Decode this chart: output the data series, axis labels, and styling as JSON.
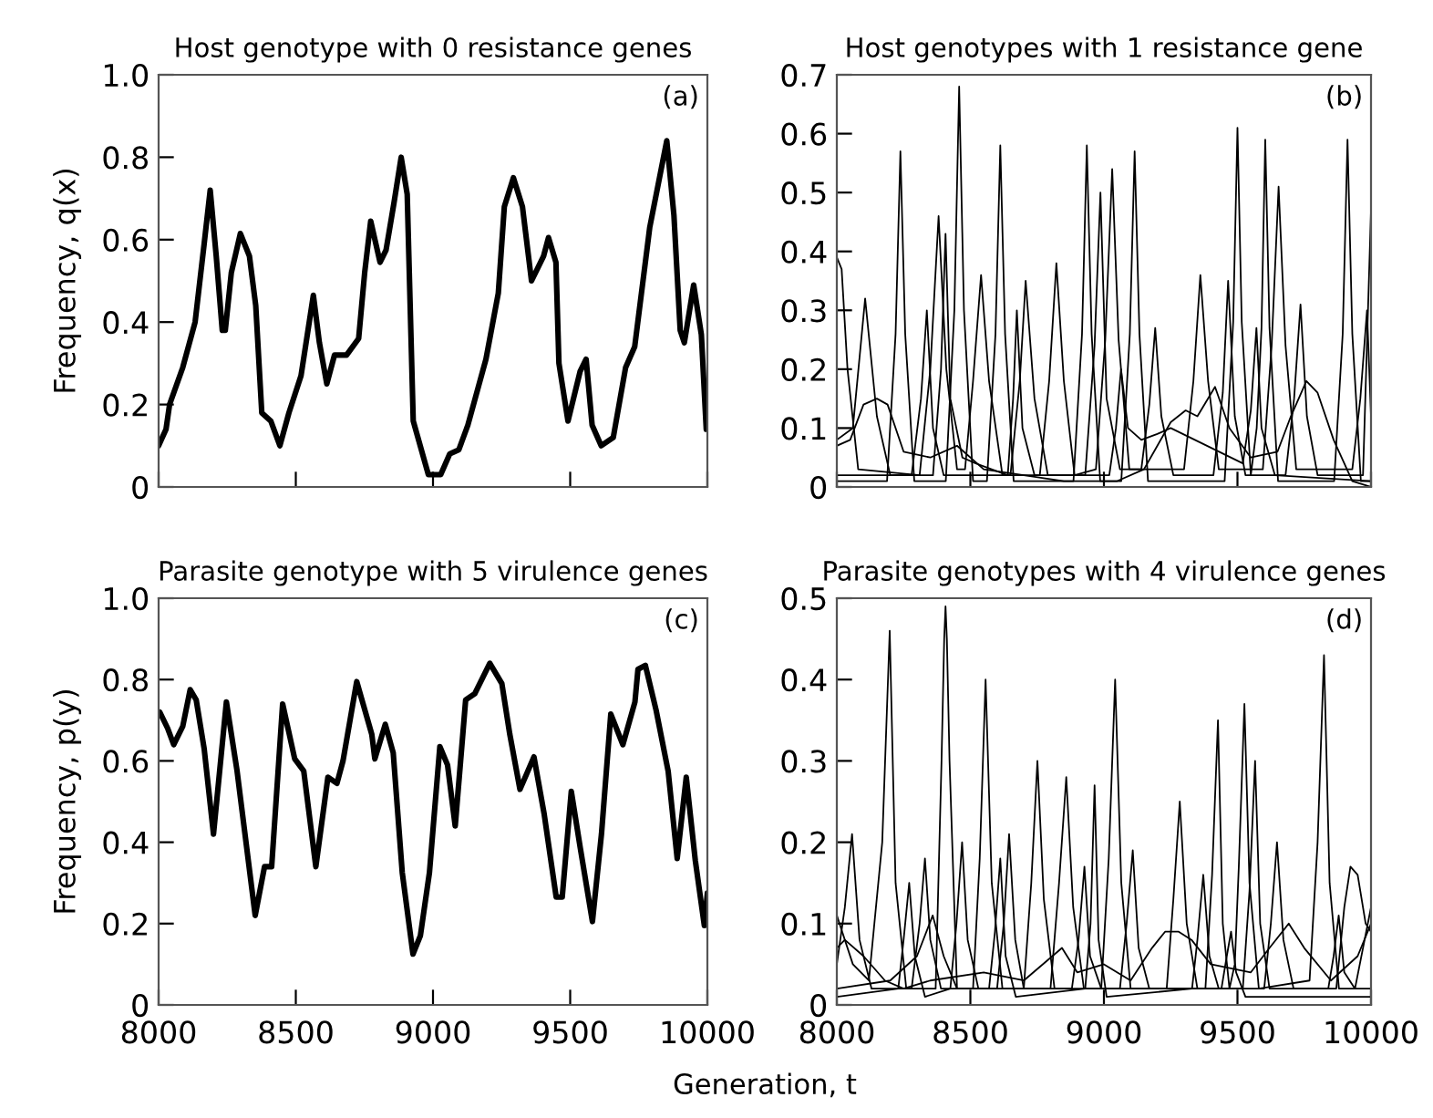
{
  "chart_data": [
    {
      "type": "line",
      "title": "Host genotype with 0 resistance genes",
      "ylabel": "Frequency, q(x)",
      "annotations": [
        "(a)"
      ],
      "xlim": [
        8000,
        10000
      ],
      "xticks": [
        {
          "value": 8000,
          "label": null
        },
        {
          "value": 8500,
          "label": null
        },
        {
          "value": 9000,
          "label": null
        },
        {
          "value": 9500,
          "label": null
        },
        {
          "value": 10000,
          "label": null
        }
      ],
      "ylim": [
        0,
        1.0
      ],
      "yticks": [
        {
          "value": 0,
          "label": "0"
        },
        {
          "value": 0.2,
          "label": "0.2"
        },
        {
          "value": 0.4,
          "label": "0.4"
        },
        {
          "value": 0.6,
          "label": "0.6"
        },
        {
          "value": 0.8,
          "label": "0.8"
        },
        {
          "value": 1.0,
          "label": "1.0"
        }
      ],
      "tick_labels": "y",
      "series": [
        {
          "color": "#000000",
          "x": [
            8000,
            8027,
            8040,
            8088,
            8133,
            8166,
            8188,
            8210,
            8232,
            8243,
            8265,
            8298,
            8331,
            8354,
            8376,
            8409,
            8442,
            8475,
            8519,
            8564,
            8586,
            8613,
            8641,
            8685,
            8729,
            8751,
            8773,
            8807,
            8829,
            8858,
            8884,
            8906,
            8928,
            8983,
            9028,
            9061,
            9094,
            9127,
            9193,
            9238,
            9260,
            9293,
            9326,
            9359,
            9403,
            9421,
            9448,
            9459,
            9492,
            9536,
            9558,
            9580,
            9613,
            9657,
            9702,
            9735,
            9790,
            9852,
            9878,
            9901,
            9916,
            9950,
            9978,
            9996
          ],
          "values": [
            0.1,
            0.14,
            0.2,
            0.29,
            0.4,
            0.59,
            0.72,
            0.56,
            0.38,
            0.38,
            0.52,
            0.615,
            0.56,
            0.44,
            0.18,
            0.16,
            0.1,
            0.18,
            0.27,
            0.465,
            0.35,
            0.25,
            0.32,
            0.32,
            0.36,
            0.52,
            0.645,
            0.545,
            0.575,
            0.69,
            0.8,
            0.71,
            0.16,
            0.03,
            0.03,
            0.08,
            0.09,
            0.15,
            0.31,
            0.47,
            0.68,
            0.75,
            0.68,
            0.5,
            0.56,
            0.605,
            0.545,
            0.3,
            0.16,
            0.28,
            0.31,
            0.15,
            0.1,
            0.12,
            0.29,
            0.34,
            0.63,
            0.84,
            0.66,
            0.38,
            0.35,
            0.49,
            0.37,
            0.14
          ]
        }
      ]
    },
    {
      "type": "line",
      "title": "Host genotypes with 1 resistance gene",
      "annotations": [
        "(b)"
      ],
      "xlim": [
        8000,
        10000
      ],
      "xticks": [
        {
          "value": 8000,
          "label": null
        },
        {
          "value": 8500,
          "label": null
        },
        {
          "value": 9000,
          "label": null
        },
        {
          "value": 9500,
          "label": null
        },
        {
          "value": 10000,
          "label": null
        }
      ],
      "ylim": [
        0,
        0.7
      ],
      "yticks": [
        {
          "value": 0,
          "label": "0"
        },
        {
          "value": 0.1,
          "label": "0.1"
        },
        {
          "value": 0.2,
          "label": "0.2"
        },
        {
          "value": 0.3,
          "label": "0.3"
        },
        {
          "value": 0.4,
          "label": "0.4"
        },
        {
          "value": 0.5,
          "label": "0.5"
        },
        {
          "value": 0.6,
          "label": "0.6"
        },
        {
          "value": 0.7,
          "label": "0.7"
        }
      ],
      "tick_labels": "y",
      "series": [
        {
          "color": "#000000",
          "x": [
            8000,
            8188,
            8220,
            8238,
            8256,
            8290,
            8408,
            8440,
            8458,
            8476,
            8510,
            8562,
            8594,
            8612,
            8630,
            8662,
            8886,
            8918,
            8936,
            8954,
            8986,
            9065,
            9097,
            9115,
            9133,
            9165,
            9452,
            9484,
            9500,
            9516,
            9550,
            9572,
            9590,
            9604,
            9620,
            9652,
            9862,
            9894,
            9912,
            9930,
            9962,
            10000
          ],
          "values": [
            0.01,
            0.01,
            0.26,
            0.57,
            0.26,
            0.01,
            0.01,
            0.3,
            0.68,
            0.3,
            0.01,
            0.01,
            0.26,
            0.58,
            0.26,
            0.01,
            0.01,
            0.26,
            0.58,
            0.26,
            0.01,
            0.01,
            0.26,
            0.57,
            0.26,
            0.01,
            0.01,
            0.28,
            0.61,
            0.28,
            0.02,
            0.1,
            0.27,
            0.59,
            0.27,
            0.01,
            0.01,
            0.26,
            0.59,
            0.26,
            0.01,
            0.01
          ]
        },
        {
          "color": "#000000",
          "x": [
            8000,
            8018,
            8040,
            8080,
            8310,
            8350,
            8381,
            8410,
            8450,
            8480,
            8510,
            8540,
            8570,
            8620,
            8760,
            8795,
            8822,
            8850,
            8890,
            8970,
            9005,
            9031,
            9055,
            9095,
            9300,
            9335,
            9361,
            9390,
            9430,
            9595,
            9628,
            9654,
            9680,
            9720,
            9930,
            9960,
            9985,
            10000
          ],
          "values": [
            0.39,
            0.37,
            0.2,
            0.03,
            0.02,
            0.2,
            0.46,
            0.2,
            0.03,
            0.03,
            0.18,
            0.36,
            0.18,
            0.02,
            0.02,
            0.18,
            0.38,
            0.18,
            0.02,
            0.03,
            0.25,
            0.54,
            0.25,
            0.03,
            0.03,
            0.18,
            0.36,
            0.18,
            0.03,
            0.03,
            0.24,
            0.51,
            0.24,
            0.03,
            0.03,
            0.15,
            0.3,
            0.12
          ]
        },
        {
          "color": "#000000",
          "x": [
            8000,
            8060,
            8106,
            8150,
            8200,
            8280,
            8315,
            8337,
            8360,
            8400,
            8650,
            8685,
            8707,
            8740,
            8790,
            8930,
            8965,
            8987,
            9010,
            9060,
            9140,
            9170,
            9192,
            9215,
            9260,
            9410,
            9445,
            9465,
            9490,
            9530,
            9680,
            9712,
            9736,
            9760,
            9800,
            9970,
            10000
          ],
          "values": [
            0.08,
            0.1,
            0.32,
            0.12,
            0.02,
            0.02,
            0.15,
            0.3,
            0.1,
            0.02,
            0.02,
            0.18,
            0.35,
            0.15,
            0.02,
            0.02,
            0.24,
            0.5,
            0.15,
            0.03,
            0.03,
            0.14,
            0.27,
            0.12,
            0.02,
            0.02,
            0.16,
            0.35,
            0.12,
            0.02,
            0.02,
            0.15,
            0.31,
            0.12,
            0.02,
            0.02,
            0.47
          ]
        },
        {
          "color": "#000000",
          "x": [
            8000,
            8360,
            8390,
            8407,
            8425,
            8470,
            8520,
            8640,
            8660,
            8674,
            8695,
            8740,
            9020,
            9045,
            9064,
            9090,
            9140,
            9200,
            9250,
            9520,
            9550,
            9571,
            9590,
            9640,
            10000
          ],
          "values": [
            0.02,
            0.02,
            0.2,
            0.43,
            0.15,
            0.05,
            0.04,
            0.02,
            0.15,
            0.3,
            0.1,
            0.02,
            0.02,
            0.1,
            0.2,
            0.1,
            0.08,
            0.09,
            0.1,
            0.04,
            0.13,
            0.27,
            0.1,
            0.02,
            0.01
          ]
        },
        {
          "color": "#000000",
          "x": [
            8000,
            8050,
            8100,
            8150,
            8190,
            8250,
            8350,
            8450,
            8550,
            8700,
            8850,
            9050,
            9150,
            9250,
            9306,
            9350,
            9416,
            9470,
            9550,
            9650,
            9700,
            9758,
            9800,
            9860,
            9930,
            10000
          ],
          "values": [
            0.07,
            0.08,
            0.14,
            0.15,
            0.14,
            0.06,
            0.05,
            0.07,
            0.03,
            0.02,
            0.01,
            0.01,
            0.03,
            0.11,
            0.13,
            0.12,
            0.17,
            0.1,
            0.05,
            0.06,
            0.12,
            0.18,
            0.16,
            0.08,
            0.01,
            0.0
          ]
        }
      ]
    },
    {
      "type": "line",
      "title": "Parasite genotype with 5 virulence genes",
      "ylabel": "Frequency, p(y)",
      "xlabel": "Generation, t",
      "annotations": [
        "(c)"
      ],
      "xlim": [
        8000,
        10000
      ],
      "xticks": [
        8000,
        8500,
        9000,
        9500,
        10000
      ],
      "ylim": [
        0,
        1.0
      ],
      "yticks": [
        {
          "value": 0,
          "label": "0"
        },
        {
          "value": 0.2,
          "label": "0.2"
        },
        {
          "value": 0.4,
          "label": "0.4"
        },
        {
          "value": 0.6,
          "label": "0.6"
        },
        {
          "value": 0.8,
          "label": "0.8"
        },
        {
          "value": 1.0,
          "label": "1.0"
        }
      ],
      "series": [
        {
          "color": "#000000",
          "x": [
            8004,
            8033,
            8055,
            8088,
            8115,
            8137,
            8166,
            8200,
            8247,
            8286,
            8352,
            8386,
            8412,
            8452,
            8496,
            8529,
            8573,
            8617,
            8650,
            8672,
            8722,
            8777,
            8788,
            8826,
            8855,
            8888,
            8927,
            8954,
            8987,
            9025,
            9053,
            9081,
            9119,
            9152,
            9207,
            9251,
            9280,
            9317,
            9368,
            9405,
            9449,
            9471,
            9504,
            9537,
            9581,
            9614,
            9648,
            9692,
            9736,
            9747,
            9774,
            9813,
            9857,
            9890,
            9923,
            9956,
            9989,
            10000
          ],
          "values": [
            0.72,
            0.68,
            0.64,
            0.685,
            0.775,
            0.75,
            0.63,
            0.42,
            0.745,
            0.575,
            0.22,
            0.34,
            0.34,
            0.74,
            0.605,
            0.575,
            0.34,
            0.56,
            0.545,
            0.6,
            0.795,
            0.665,
            0.605,
            0.69,
            0.62,
            0.325,
            0.125,
            0.17,
            0.325,
            0.635,
            0.59,
            0.44,
            0.75,
            0.765,
            0.84,
            0.79,
            0.665,
            0.53,
            0.61,
            0.47,
            0.265,
            0.265,
            0.525,
            0.385,
            0.205,
            0.42,
            0.715,
            0.64,
            0.745,
            0.825,
            0.835,
            0.725,
            0.575,
            0.36,
            0.56,
            0.355,
            0.195,
            0.275
          ]
        }
      ]
    },
    {
      "type": "line",
      "title": "Parasite genotypes with 4 virulence genes",
      "annotations": [
        "(d)"
      ],
      "xlim": [
        8000,
        10000
      ],
      "xticks": [
        8000,
        8500,
        9000,
        9500,
        10000
      ],
      "ylim": [
        0,
        0.5
      ],
      "yticks": [
        {
          "value": 0,
          "label": "0"
        },
        {
          "value": 0.1,
          "label": "0.1"
        },
        {
          "value": 0.2,
          "label": "0.2"
        },
        {
          "value": 0.3,
          "label": "0.3"
        },
        {
          "value": 0.4,
          "label": "0.4"
        },
        {
          "value": 0.5,
          "label": "0.5"
        }
      ],
      "series": [
        {
          "color": "#000000",
          "x": [
            8000,
            8060,
            8120,
            8170,
            8198,
            8220,
            8260,
            8370,
            8392,
            8402,
            8407,
            8412,
            8422,
            8450,
            8510,
            8535,
            8557,
            8580,
            8620,
            8700,
            8728,
            8751,
            8775,
            8815,
            8990,
            9018,
            9042,
            9065,
            9100,
            9380,
            9405,
            9427,
            9445,
            9470,
            9490,
            9505,
            9526,
            9545,
            9580,
            9770,
            9800,
            9824,
            9845,
            9880,
            10000
          ],
          "values": [
            0.11,
            0.05,
            0.03,
            0.2,
            0.46,
            0.15,
            0.02,
            0.02,
            0.3,
            0.45,
            0.49,
            0.45,
            0.3,
            0.02,
            0.02,
            0.18,
            0.4,
            0.15,
            0.02,
            0.02,
            0.15,
            0.3,
            0.13,
            0.02,
            0.02,
            0.18,
            0.4,
            0.15,
            0.02,
            0.02,
            0.16,
            0.35,
            0.1,
            0.02,
            0.05,
            0.17,
            0.37,
            0.15,
            0.02,
            0.03,
            0.2,
            0.43,
            0.15,
            0.02,
            0.02
          ]
        },
        {
          "color": "#000000",
          "x": [
            8000,
            8030,
            8057,
            8085,
            8130,
            8280,
            8310,
            8330,
            8350,
            8390,
            8600,
            8625,
            8645,
            8668,
            8700,
            8800,
            8832,
            8859,
            8885,
            8925,
            9060,
            9085,
            9108,
            9130,
            9170,
            9235,
            9260,
            9284,
            9310,
            9350,
            9520,
            9545,
            9566,
            9585,
            9620,
            9870,
            9900,
            9923,
            9950,
            9980,
            10000
          ],
          "values": [
            0.05,
            0.12,
            0.21,
            0.08,
            0.02,
            0.02,
            0.1,
            0.18,
            0.08,
            0.02,
            0.02,
            0.1,
            0.21,
            0.08,
            0.02,
            0.02,
            0.15,
            0.28,
            0.12,
            0.02,
            0.02,
            0.1,
            0.19,
            0.07,
            0.02,
            0.02,
            0.13,
            0.25,
            0.1,
            0.02,
            0.02,
            0.14,
            0.3,
            0.1,
            0.02,
            0.02,
            0.12,
            0.17,
            0.16,
            0.1,
            0.09
          ]
        },
        {
          "color": "#000000",
          "x": [
            8000,
            8230,
            8250,
            8271,
            8292,
            8330,
            8425,
            8448,
            8469,
            8490,
            8530,
            8570,
            8592,
            8612,
            8632,
            8670,
            8930,
            8950,
            8965,
            8980,
            9010,
            9330,
            9350,
            9372,
            9395,
            9430,
            9600,
            9625,
            9648,
            9672,
            9710,
            9840,
            9860,
            9879,
            9900,
            9940,
            10000
          ],
          "values": [
            0.01,
            0.02,
            0.08,
            0.15,
            0.06,
            0.01,
            0.02,
            0.1,
            0.2,
            0.08,
            0.02,
            0.02,
            0.09,
            0.18,
            0.06,
            0.01,
            0.02,
            0.1,
            0.27,
            0.08,
            0.01,
            0.02,
            0.08,
            0.16,
            0.06,
            0.02,
            0.02,
            0.1,
            0.2,
            0.08,
            0.02,
            0.02,
            0.06,
            0.11,
            0.04,
            0.02,
            0.12
          ]
        },
        {
          "color": "#000000",
          "x": [
            8000,
            8200,
            8300,
            8359,
            8400,
            8450,
            8880,
            8905,
            8927,
            8948,
            8990,
            9440,
            9460,
            9476,
            9495,
            9530,
            10000
          ],
          "values": [
            0.02,
            0.03,
            0.06,
            0.11,
            0.06,
            0.02,
            0.02,
            0.08,
            0.17,
            0.06,
            0.02,
            0.02,
            0.06,
            0.09,
            0.04,
            0.01,
            0.01
          ]
        },
        {
          "color": "#000000",
          "x": [
            8000,
            8030,
            8100,
            8180,
            8250,
            8350,
            8550,
            8700,
            8843,
            8900,
            9000,
            9100,
            9180,
            9229,
            9280,
            9328,
            9400,
            9550,
            9620,
            9692,
            9750,
            9850,
            9950,
            10000
          ],
          "values": [
            0.07,
            0.08,
            0.06,
            0.03,
            0.02,
            0.03,
            0.04,
            0.03,
            0.07,
            0.04,
            0.05,
            0.03,
            0.07,
            0.09,
            0.09,
            0.08,
            0.05,
            0.04,
            0.07,
            0.1,
            0.07,
            0.03,
            0.06,
            0.1
          ]
        }
      ]
    }
  ]
}
